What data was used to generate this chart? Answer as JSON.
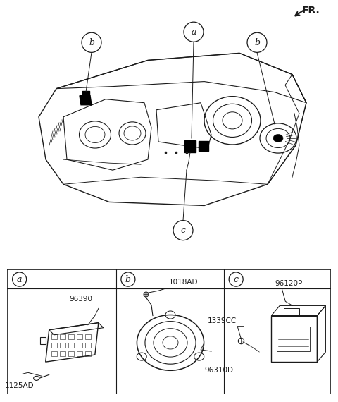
{
  "bg_color": "#ffffff",
  "line_color": "#1a1a1a",
  "fig_width": 4.8,
  "fig_height": 5.7,
  "dpi": 100,
  "fr_label": "FR.",
  "section_labels": [
    "a",
    "b",
    "c"
  ],
  "part_labels_a": [
    "96390",
    "1125AD"
  ],
  "part_labels_b": [
    "1018AD",
    "96310D"
  ],
  "part_labels_c": [
    "96120P",
    "1339CC"
  ]
}
